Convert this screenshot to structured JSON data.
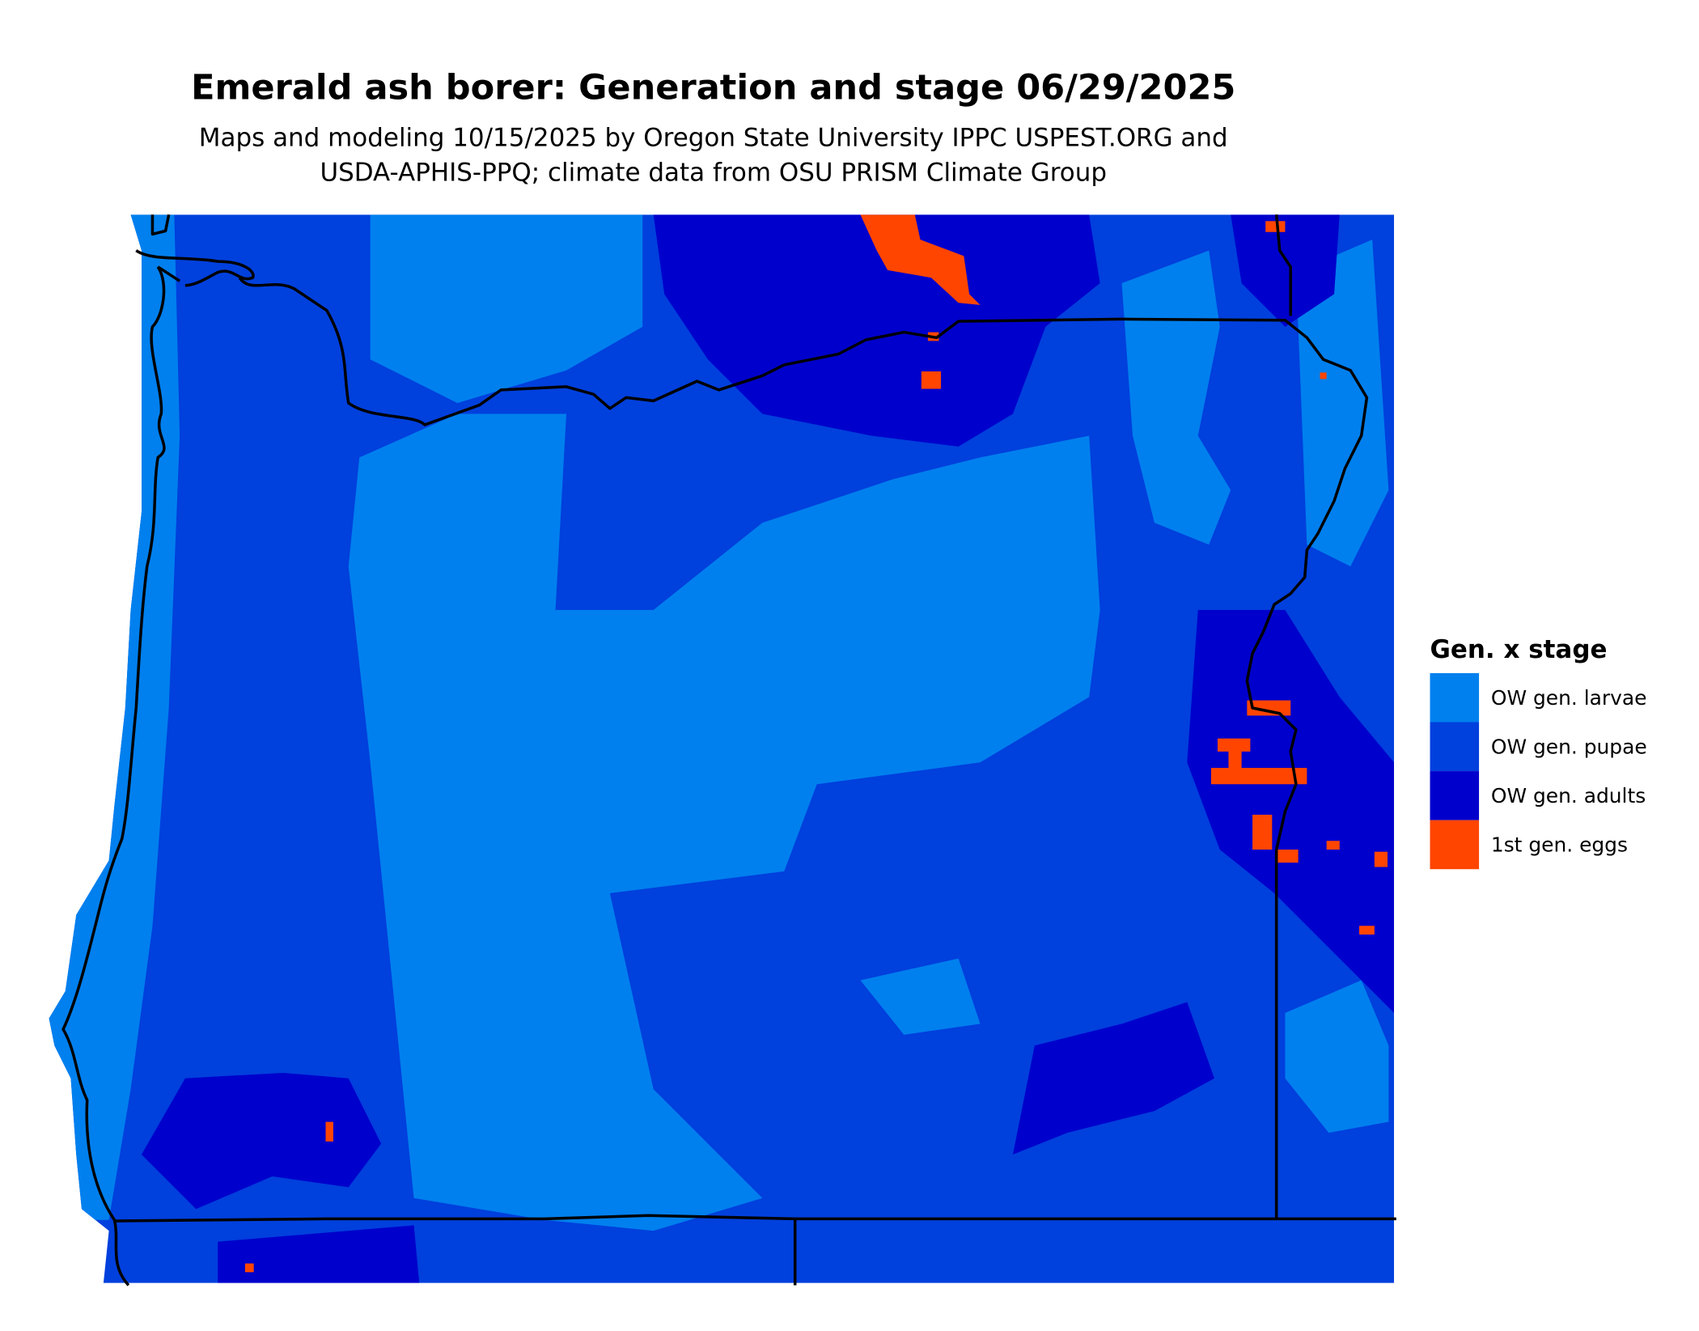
{
  "title": "Emerald ash borer: Generation and stage 06/29/2025",
  "subtitle_lines": [
    "Maps and modeling 10/15/2025 by Oregon State University IPPC USPEST.ORG and",
    "USDA-APHIS-PPQ; climate data from OSU PRISM Climate Group"
  ],
  "legend": {
    "title": "Gen. x stage",
    "items": [
      {
        "label": "OW gen. larvae",
        "color": "#0080EE"
      },
      {
        "label": "OW gen. pupae",
        "color": "#0040DD"
      },
      {
        "label": "OW gen. adults",
        "color": "#0000CC"
      },
      {
        "label": "1st gen. eggs",
        "color": "#FF4500"
      }
    ]
  }
}
